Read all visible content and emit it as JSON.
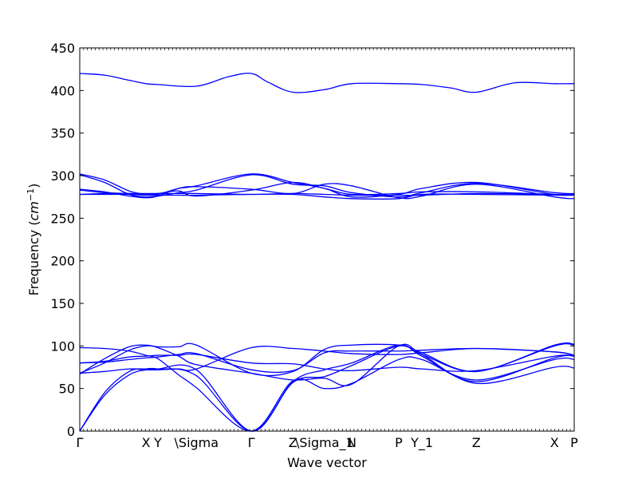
{
  "chart_data": {
    "type": "line",
    "title": "",
    "xlabel": "Wave vector",
    "ylabel_text": "Frequency (",
    "ylabel_math": "cm",
    "ylabel_sup": "−1",
    "ylabel_close": ")",
    "ylim": [
      0,
      450
    ],
    "yticks": [
      0,
      50,
      100,
      150,
      200,
      250,
      300,
      350,
      400,
      450
    ],
    "xlim": [
      0,
      1
    ],
    "grid": false,
    "line_color": "#0000ff",
    "high_symmetry_points": [
      {
        "label": "Γ",
        "x": 0.0
      },
      {
        "label": "X",
        "x": 0.134
      },
      {
        "label": "Y",
        "x": 0.158
      },
      {
        "label": "\\Sigma",
        "x": 0.236
      },
      {
        "label": "Γ",
        "x": 0.347
      },
      {
        "label": "Z",
        "x": 0.431
      },
      {
        "label": "\\Sigma_1",
        "x": 0.495
      },
      {
        "label": "N",
        "x": 0.55
      },
      {
        "label": "P",
        "x": 0.645
      },
      {
        "label": "Y_1",
        "x": 0.692
      },
      {
        "label": "Z",
        "x": 0.802
      },
      {
        "label": "X",
        "x": 0.96
      },
      {
        "label": "P",
        "x": 1.0
      }
    ],
    "series": [
      {
        "x": [
          0,
          0.05,
          0.1,
          0.134,
          0.158,
          0.236,
          0.347,
          0.431,
          0.495,
          0.55,
          0.645,
          0.692,
          0.802,
          0.96,
          1.0
        ],
        "y": [
          0,
          42,
          66,
          72,
          73,
          72,
          0,
          57,
          64,
          77,
          100,
          90,
          70,
          100,
          101
        ]
      },
      {
        "x": [
          0,
          0.05,
          0.1,
          0.134,
          0.158,
          0.236,
          0.347,
          0.431,
          0.495,
          0.55,
          0.645,
          0.692,
          0.802,
          0.96,
          1.0
        ],
        "y": [
          0,
          45,
          70,
          73,
          73,
          65,
          0,
          58,
          72,
          80,
          101,
          88,
          58,
          86,
          88
        ]
      },
      {
        "x": [
          0,
          0.05,
          0.1,
          0.134,
          0.158,
          0.2,
          0.236,
          0.347,
          0.431,
          0.495,
          0.55,
          0.645,
          0.692,
          0.802,
          0.96,
          1.0
        ],
        "y": [
          67,
          85,
          99,
          101,
          99,
          99,
          101,
          68,
          70,
          96,
          101,
          101,
          92,
          70,
          101,
          102
        ]
      },
      {
        "x": [
          0,
          0.05,
          0.1,
          0.134,
          0.158,
          0.2,
          0.236,
          0.347,
          0.431,
          0.495,
          0.55,
          0.645,
          0.692,
          0.802,
          0.96,
          1.0
        ],
        "y": [
          68,
          80,
          95,
          100,
          98,
          88,
          78,
          68,
          60,
          62,
          55,
          100,
          90,
          56,
          75,
          74
        ]
      },
      {
        "x": [
          0,
          0.05,
          0.1,
          0.134,
          0.158,
          0.2,
          0.236,
          0.347,
          0.431,
          0.495,
          0.55,
          0.645,
          0.692,
          0.802,
          0.96,
          1.0
        ],
        "y": [
          80,
          82,
          87,
          88,
          89,
          89,
          90,
          80,
          79,
          73,
          71,
          75,
          73,
          71,
          88,
          88
        ]
      },
      {
        "x": [
          0,
          0.05,
          0.1,
          0.134,
          0.158,
          0.2,
          0.236,
          0.347,
          0.431,
          0.495,
          0.55,
          0.645,
          0.692,
          0.802,
          0.96,
          1.0
        ],
        "y": [
          98,
          97,
          94,
          89,
          85,
          66,
          51,
          0,
          59,
          50,
          56,
          84,
          84,
          60,
          84,
          84
        ]
      },
      {
        "x": [
          0,
          0.05,
          0.1,
          0.134,
          0.158,
          0.2,
          0.236,
          0.347,
          0.431,
          0.495,
          0.55,
          0.645,
          0.692,
          0.802,
          0.96,
          1.0
        ],
        "y": [
          68,
          70,
          73,
          72,
          72,
          73,
          73,
          98,
          97,
          94,
          91,
          90,
          92,
          97,
          93,
          89
        ]
      },
      {
        "x": [
          0,
          0.05,
          0.1,
          0.134,
          0.158,
          0.2,
          0.236,
          0.347,
          0.431,
          0.495,
          0.55,
          0.645,
          0.692,
          0.802,
          0.96,
          1.0
        ],
        "y": [
          80,
          81,
          84,
          86,
          87,
          90,
          91,
          72,
          71,
          92,
          94,
          94,
          95,
          97,
          93,
          89
        ]
      },
      {
        "x": [
          0,
          0.05,
          0.1,
          0.134,
          0.158,
          0.2,
          0.236,
          0.347,
          0.431,
          0.495,
          0.55,
          0.645,
          0.692,
          0.802,
          0.96,
          1.0
        ],
        "y": [
          302,
          295,
          282,
          278,
          278,
          285,
          288,
          302,
          292,
          285,
          275,
          278,
          285,
          292,
          278,
          278
        ]
      },
      {
        "x": [
          0,
          0.05,
          0.1,
          0.134,
          0.158,
          0.2,
          0.236,
          0.347,
          0.431,
          0.495,
          0.55,
          0.645,
          0.692,
          0.802,
          0.96,
          1.0
        ],
        "y": [
          301,
          292,
          278,
          275,
          276,
          280,
          283,
          301,
          290,
          288,
          280,
          275,
          280,
          291,
          280,
          279
        ]
      },
      {
        "x": [
          0,
          0.05,
          0.1,
          0.134,
          0.158,
          0.2,
          0.236,
          0.347,
          0.431,
          0.495,
          0.55,
          0.645,
          0.692,
          0.802,
          0.96,
          1.0
        ],
        "y": [
          284,
          281,
          276,
          274,
          276,
          285,
          287,
          284,
          279,
          290,
          288,
          274,
          276,
          290,
          275,
          273
        ]
      },
      {
        "x": [
          0,
          0.05,
          0.1,
          0.134,
          0.158,
          0.2,
          0.236,
          0.347,
          0.431,
          0.495,
          0.55,
          0.645,
          0.692,
          0.802,
          0.96,
          1.0
        ],
        "y": [
          283,
          280,
          279,
          278,
          279,
          282,
          276,
          283,
          292,
          285,
          278,
          279,
          281,
          281,
          278,
          278
        ]
      },
      {
        "x": [
          0,
          0.05,
          0.1,
          0.134,
          0.158,
          0.2,
          0.236,
          0.347,
          0.431,
          0.495,
          0.55,
          0.645,
          0.692,
          0.802,
          0.96,
          1.0
        ],
        "y": [
          278,
          278,
          278,
          277,
          277,
          277,
          277,
          278,
          278,
          275,
          273,
          273,
          278,
          278,
          277,
          277
        ]
      },
      {
        "x": [
          0,
          0.05,
          0.1,
          0.134,
          0.158,
          0.2,
          0.236,
          0.347,
          0.431,
          0.495,
          0.55,
          0.645,
          0.692,
          0.802,
          0.96,
          1.0
        ],
        "y": [
          278,
          279,
          279,
          279,
          279,
          279,
          279,
          278,
          279,
          278,
          277,
          277,
          277,
          279,
          278,
          278
        ]
      },
      {
        "x": [
          0,
          0.05,
          0.1,
          0.134,
          0.158,
          0.236,
          0.3,
          0.347,
          0.38,
          0.431,
          0.495,
          0.55,
          0.645,
          0.692,
          0.75,
          0.802,
          0.88,
          0.96,
          1.0
        ],
        "y": [
          420,
          418,
          412,
          408,
          407,
          405,
          416,
          420,
          410,
          398,
          401,
          408,
          408,
          407,
          403,
          398,
          409,
          408,
          408
        ]
      }
    ]
  }
}
